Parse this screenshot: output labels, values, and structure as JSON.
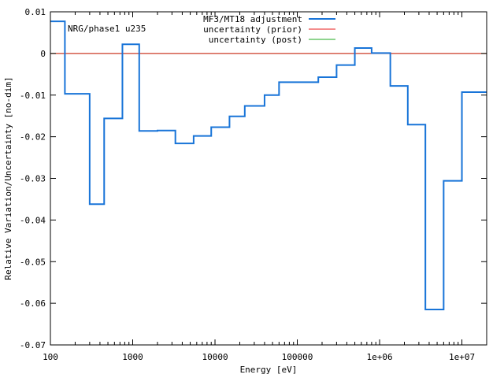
{
  "chart_data": {
    "type": "line",
    "step": true,
    "title": "",
    "annotation": "NRG/phase1 u235",
    "xlabel": "Energy [eV]",
    "ylabel": "Relative Variation/Uncertainty [no-dim]",
    "xscale": "log",
    "xlim": [
      100,
      20000000
    ],
    "ylim": [
      -0.07,
      0.01
    ],
    "xticks": [
      {
        "value": 100,
        "label": "100"
      },
      {
        "value": 1000,
        "label": "1000"
      },
      {
        "value": 10000,
        "label": "10000"
      },
      {
        "value": 100000,
        "label": "100000"
      },
      {
        "value": 1000000,
        "label": "1e+06"
      },
      {
        "value": 10000000,
        "label": "1e+07"
      }
    ],
    "yticks": [
      {
        "value": 0.01,
        "label": "0.01"
      },
      {
        "value": 0,
        "label": "0"
      },
      {
        "value": -0.01,
        "label": "-0.01"
      },
      {
        "value": -0.02,
        "label": "-0.02"
      },
      {
        "value": -0.03,
        "label": "-0.03"
      },
      {
        "value": -0.04,
        "label": "-0.04"
      },
      {
        "value": -0.05,
        "label": "-0.05"
      },
      {
        "value": -0.06,
        "label": "-0.06"
      },
      {
        "value": -0.07,
        "label": "-0.07"
      }
    ],
    "grid": false,
    "legend_position": "top-center",
    "series": [
      {
        "name": "MF3/MT18 adjustment",
        "color": "#1874d8",
        "edges": [
          100,
          150,
          300,
          450,
          750,
          1200,
          2000,
          3300,
          5500,
          9000,
          15000,
          23000,
          40000,
          60000,
          180000,
          300000,
          500000,
          800000,
          1350000,
          2200000,
          3600000,
          6000000,
          10000000,
          20000000
        ],
        "values": [
          0.0077,
          -0.0097,
          -0.0362,
          -0.0156,
          0.0022,
          -0.0186,
          -0.0185,
          -0.0216,
          -0.0198,
          -0.0177,
          -0.0151,
          -0.0126,
          -0.01,
          -0.0069,
          -0.0057,
          -0.0028,
          0.0013,
          0.0001,
          -0.0078,
          -0.0171,
          -0.0615,
          -0.0306,
          -0.0093
        ]
      },
      {
        "name": "uncertainty (prior)",
        "color": "#e8191a",
        "edges": [
          100,
          20000000
        ],
        "values": [
          0
        ]
      },
      {
        "name": "uncertainty (post)",
        "color": "#1faa1f",
        "edges": [
          100,
          20000000
        ],
        "values": [
          0
        ]
      }
    ]
  }
}
